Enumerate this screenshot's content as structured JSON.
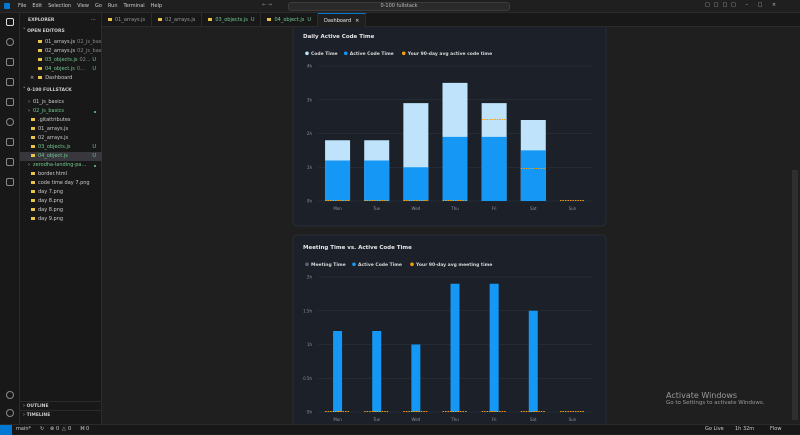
{
  "menu": [
    "File",
    "Edit",
    "Selection",
    "View",
    "Go",
    "Run",
    "Terminal",
    "Help"
  ],
  "search": "0-100 fullstack",
  "tabs": [
    {
      "label": "01_arrays.js"
    },
    {
      "label": "02_arrays.js"
    },
    {
      "label": "03_objects.js",
      "badge": "U"
    },
    {
      "label": "04_object.js",
      "badge": "U"
    },
    {
      "label": "Dashboard",
      "active": true
    }
  ],
  "sidebar": {
    "title": "EXPLORER",
    "open_editors_title": "OPEN EDITORS",
    "open_editors": [
      {
        "name": "01_arrays.js",
        "detail": "02_js_bas..."
      },
      {
        "name": "02_arrays.js",
        "detail": "02_js_bas..."
      },
      {
        "name": "03_objects.js",
        "detail": "02...",
        "badge": "U"
      },
      {
        "name": "04_object.js",
        "detail": "0...",
        "badge": "U"
      },
      {
        "name": "Dashboard"
      }
    ],
    "folder_title": "0-100 FULLSTACK",
    "files": [
      {
        "name": "01_js_basics",
        "folder": true
      },
      {
        "name": "02_js_basics",
        "folder": true,
        "modified": true
      },
      {
        "name": ".gitattributes"
      },
      {
        "name": "01_arrays.js"
      },
      {
        "name": "02_arrays.js"
      },
      {
        "name": "03_objects.js",
        "badge": "U"
      },
      {
        "name": "04_object.js",
        "badge": "U",
        "selected": true
      },
      {
        "name": "zerodha-landing-pa...",
        "folder": true,
        "modified": true
      },
      {
        "name": "border.html"
      },
      {
        "name": "code time day 7.png"
      },
      {
        "name": "day 7.png"
      },
      {
        "name": "day 8.png"
      },
      {
        "name": "day 8.png"
      },
      {
        "name": "day 9.png"
      }
    ],
    "outline": "OUTLINE",
    "timeline": "TIMELINE"
  },
  "charts": [
    {
      "type": "bar",
      "title": "Daily Active Code Time",
      "categories": [
        "Mon",
        "Tue",
        "Wed",
        "Thu",
        "Fri",
        "Sat",
        "Sun"
      ],
      "series": [
        {
          "name": "Code Time",
          "style": "bar",
          "color": "#bfe3fb",
          "values": [
            1.8,
            1.8,
            2.9,
            3.5,
            2.9,
            2.4,
            0
          ]
        },
        {
          "name": "Active Code Time",
          "style": "bar",
          "color": "#1597f5",
          "values": [
            1.2,
            1.2,
            1.0,
            1.9,
            1.9,
            1.5,
            0
          ]
        },
        {
          "name": "Your 90-day avg active code time",
          "style": "dash",
          "color": "#f59e0b",
          "values": [
            0,
            0,
            0,
            0,
            2.4,
            0.95,
            0
          ]
        }
      ],
      "ylim": [
        0,
        4
      ],
      "yticks": [
        {
          "value": 0,
          "label": "0h"
        },
        {
          "value": 1,
          "label": "1h"
        },
        {
          "value": 2,
          "label": "2h"
        },
        {
          "value": 3,
          "label": "3h"
        },
        {
          "value": 4,
          "label": "4h"
        }
      ],
      "grid": true
    },
    {
      "type": "bar",
      "title": "Meeting Time vs. Active Code Time",
      "categories": [
        "Mon",
        "Tue",
        "Wed",
        "Thu",
        "Fri",
        "Sat",
        "Sun"
      ],
      "series": [
        {
          "name": "Meeting Time",
          "style": "bar",
          "color": "#5b6573",
          "values": [
            0,
            0,
            0,
            0,
            0,
            0,
            0
          ]
        },
        {
          "name": "Active Code Time",
          "style": "bar",
          "color": "#1597f5",
          "values": [
            1.2,
            1.2,
            1.0,
            1.9,
            1.9,
            1.5,
            0
          ]
        },
        {
          "name": "Your 90-day avg meeting time",
          "style": "dash",
          "color": "#f59e0b",
          "values": [
            0,
            0,
            0,
            0,
            0,
            0,
            0
          ]
        }
      ],
      "ylim": [
        0,
        2
      ],
      "yticks": [
        {
          "value": 0,
          "label": "0h"
        },
        {
          "value": 0.5,
          "label": "0.5h"
        },
        {
          "value": 1,
          "label": "1h"
        },
        {
          "value": 1.5,
          "label": "1.5h"
        },
        {
          "value": 2,
          "label": "2h"
        }
      ],
      "grid": true
    }
  ],
  "watermark": {
    "title": "Activate Windows",
    "subtitle": "Go to Settings to activate Windows."
  },
  "status": {
    "branch": "main*",
    "errors": "0",
    "warnings": "0",
    "ports": "0",
    "golive": "Go Live",
    "time": "1h 32m",
    "flow": "Flow"
  }
}
